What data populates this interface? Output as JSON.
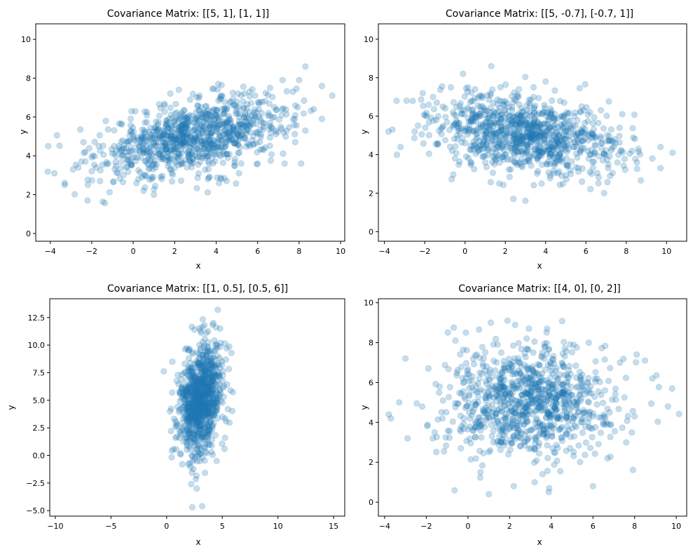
{
  "figure": {
    "marker_color": "#1f77b4",
    "marker_alpha": 0.25,
    "background": "#ffffff"
  },
  "chart_data": [
    {
      "type": "scatter",
      "title": "Covariance Matrix: [[5, 1], [1, 1]]",
      "xlabel": "x",
      "ylabel": "y",
      "xlim": [
        -4.7,
        10.2
      ],
      "ylim": [
        -0.4,
        10.8
      ],
      "xticks": [
        -4,
        -2,
        0,
        2,
        4,
        6,
        8,
        10
      ],
      "yticks": [
        0,
        2,
        4,
        6,
        8,
        10
      ],
      "mean": [
        3,
        5
      ],
      "covariance": [
        [
          5,
          1
        ],
        [
          1,
          1
        ]
      ],
      "n_points": 1000,
      "grid": false,
      "points": [
        [
          -4.1,
          4.5
        ],
        [
          -3.8,
          3.1
        ],
        [
          -3.3,
          2.6
        ],
        [
          -3.3,
          2.5
        ],
        [
          -2.9,
          3.3
        ],
        [
          -2.5,
          3.7
        ],
        [
          -2.4,
          4.7
        ],
        [
          -2.2,
          1.7
        ],
        [
          -2.0,
          3.2
        ],
        [
          -1.6,
          2.7
        ],
        [
          -1.2,
          3.6
        ],
        [
          -0.9,
          4.1
        ],
        [
          -0.5,
          4.8
        ],
        [
          0.1,
          6.3
        ],
        [
          0.5,
          2.2
        ],
        [
          0.6,
          3.0
        ],
        [
          1.0,
          2.0
        ],
        [
          1.5,
          6.6
        ],
        [
          2.2,
          7.4
        ],
        [
          2.6,
          3.4
        ],
        [
          3.2,
          7.1
        ],
        [
          3.6,
          2.8
        ],
        [
          4.1,
          7.7
        ],
        [
          4.5,
          2.7
        ],
        [
          5.1,
          3.1
        ],
        [
          5.6,
          7.3
        ],
        [
          6.0,
          3.6
        ],
        [
          6.6,
          7.5
        ],
        [
          7.2,
          7.9
        ],
        [
          7.3,
          3.6
        ],
        [
          7.7,
          7.3
        ],
        [
          8.0,
          7.9
        ],
        [
          8.1,
          3.6
        ],
        [
          8.3,
          5.3
        ],
        [
          8.3,
          8.6
        ],
        [
          9.1,
          7.6
        ],
        [
          9.1,
          5.9
        ],
        [
          9.6,
          7.1
        ],
        [
          1.8,
          5.4
        ],
        [
          2.9,
          4.8
        ],
        [
          3.5,
          5.2
        ],
        [
          4.2,
          5.6
        ],
        [
          2.3,
          4.5
        ],
        [
          3.1,
          5.9
        ],
        [
          4.8,
          5.5
        ],
        [
          1.2,
          4.3
        ],
        [
          5.4,
          6.1
        ],
        [
          0.4,
          4.9
        ],
        [
          2.7,
          3.9
        ],
        [
          3.9,
          4.4
        ],
        [
          6.2,
          6.2
        ],
        [
          5.8,
          5.0
        ],
        [
          -0.3,
          3.8
        ],
        [
          1.6,
          5.8
        ],
        [
          4.4,
          6.4
        ],
        [
          6.8,
          6.5
        ]
      ]
    },
    {
      "type": "scatter",
      "title": "Covariance Matrix: [[5, -0.7], [-0.7, 1]]",
      "xlabel": "x",
      "ylabel": "y",
      "xlim": [
        -4.3,
        11.0
      ],
      "ylim": [
        -0.5,
        10.8
      ],
      "xticks": [
        -4,
        -2,
        0,
        2,
        4,
        6,
        8,
        10
      ],
      "yticks": [
        0,
        2,
        4,
        6,
        8,
        10
      ],
      "mean": [
        3,
        5
      ],
      "covariance": [
        [
          5,
          -0.7
        ],
        [
          -0.7,
          1
        ]
      ],
      "n_points": 1000,
      "grid": false,
      "points": [
        [
          -3.8,
          5.2
        ],
        [
          -3.6,
          5.3
        ],
        [
          -3.4,
          6.8
        ],
        [
          -3.2,
          4.4
        ],
        [
          -2.9,
          6.8
        ],
        [
          -2.5,
          5.2
        ],
        [
          -2.1,
          7.2
        ],
        [
          -1.9,
          6.0
        ],
        [
          -1.4,
          6.7
        ],
        [
          -0.7,
          7.5
        ],
        [
          -0.5,
          3.8
        ],
        [
          -0.1,
          8.2
        ],
        [
          0.5,
          7.4
        ],
        [
          1.0,
          3.6
        ],
        [
          1.3,
          8.6
        ],
        [
          1.7,
          2.5
        ],
        [
          2.4,
          1.7
        ],
        [
          3.0,
          1.6
        ],
        [
          3.4,
          7.5
        ],
        [
          3.8,
          2.5
        ],
        [
          4.0,
          7.8
        ],
        [
          4.8,
          2.9
        ],
        [
          5.8,
          2.6
        ],
        [
          6.2,
          6.2
        ],
        [
          6.9,
          2.0
        ],
        [
          7.2,
          2.9
        ],
        [
          7.8,
          6.1
        ],
        [
          8.6,
          4.3
        ],
        [
          9.3,
          3.8
        ],
        [
          9.7,
          4.4
        ],
        [
          9.7,
          3.3
        ],
        [
          10.3,
          4.1
        ],
        [
          1.8,
          5.3
        ],
        [
          2.9,
          4.8
        ],
        [
          3.5,
          5.1
        ],
        [
          4.2,
          4.6
        ],
        [
          2.3,
          5.6
        ],
        [
          3.1,
          4.2
        ],
        [
          4.8,
          4.9
        ],
        [
          1.2,
          5.9
        ],
        [
          5.4,
          4.4
        ],
        [
          0.4,
          6.1
        ],
        [
          2.7,
          5.9
        ],
        [
          3.9,
          5.6
        ],
        [
          6.2,
          4.0
        ],
        [
          5.8,
          5.2
        ],
        [
          -0.3,
          5.4
        ],
        [
          1.6,
          4.4
        ],
        [
          4.4,
          3.8
        ],
        [
          6.8,
          4.6
        ]
      ]
    },
    {
      "type": "scatter",
      "title": "Covariance Matrix: [[1, 0.5], [0.5, 6]]",
      "xlabel": "x",
      "ylabel": "y",
      "xlim": [
        -10.5,
        16.0
      ],
      "ylim": [
        -5.5,
        14.2
      ],
      "xticks": [
        -10,
        -5,
        0,
        5,
        10,
        15
      ],
      "yticks": [
        -5.0,
        -2.5,
        0.0,
        2.5,
        5.0,
        7.5,
        10.0,
        12.5
      ],
      "ytick_labels": [
        "−5.0",
        "−2.5",
        "0.0",
        "2.5",
        "5.0",
        "7.5",
        "10.0",
        "12.5"
      ],
      "xtick_labels": [
        "−10",
        "−5",
        "0",
        "5",
        "10",
        "15"
      ],
      "mean": [
        3,
        5
      ],
      "covariance": [
        [
          1,
          0.5
        ],
        [
          0.5,
          6
        ]
      ],
      "n_points": 1000,
      "grid": false,
      "points": [
        [
          2.3,
          -4.7
        ],
        [
          3.2,
          -4.6
        ],
        [
          2.2,
          -2.6
        ],
        [
          2.7,
          -3.0
        ],
        [
          1.4,
          -0.8
        ],
        [
          0.3,
          4.0
        ],
        [
          0.5,
          5.7
        ],
        [
          0.8,
          1.6
        ],
        [
          1.0,
          7.3
        ],
        [
          1.8,
          9.7
        ],
        [
          2.5,
          11.4
        ],
        [
          3.1,
          11.1
        ],
        [
          3.4,
          11.8
        ],
        [
          4.2,
          12.0
        ],
        [
          4.6,
          13.2
        ],
        [
          4.8,
          11.5
        ],
        [
          5.4,
          9.7
        ],
        [
          5.5,
          4.2
        ],
        [
          5.2,
          0.6
        ],
        [
          4.5,
          -0.5
        ],
        [
          3.6,
          0.2
        ],
        [
          2.9,
          5.1
        ],
        [
          3.0,
          6.2
        ],
        [
          3.3,
          4.4
        ],
        [
          2.6,
          3.6
        ],
        [
          3.5,
          7.3
        ],
        [
          2.8,
          8.4
        ],
        [
          3.7,
          2.6
        ],
        [
          2.4,
          2.0
        ],
        [
          4.1,
          6.8
        ],
        [
          1.9,
          4.6
        ],
        [
          4.3,
          5.2
        ],
        [
          3.1,
          9.1
        ],
        [
          2.0,
          6.4
        ],
        [
          3.9,
          3.1
        ],
        [
          2.2,
          8.0
        ]
      ]
    },
    {
      "type": "scatter",
      "title": "Covariance Matrix: [[4, 0], [0, 2]]",
      "xlabel": "x",
      "ylabel": "y",
      "xlim": [
        -4.3,
        10.5
      ],
      "ylim": [
        -0.7,
        10.2
      ],
      "xticks": [
        -4,
        -2,
        0,
        2,
        4,
        6,
        8,
        10
      ],
      "yticks": [
        0,
        2,
        4,
        6,
        8,
        10
      ],
      "mean": [
        3,
        5
      ],
      "covariance": [
        [
          4,
          0
        ],
        [
          0,
          2
        ]
      ],
      "n_points": 1000,
      "grid": false,
      "points": [
        [
          -3.8,
          4.4
        ],
        [
          -3.7,
          4.2
        ],
        [
          -3.3,
          5.0
        ],
        [
          -3.0,
          7.2
        ],
        [
          -2.9,
          3.2
        ],
        [
          -1.9,
          6.7
        ],
        [
          -1.6,
          3.5
        ],
        [
          -0.6,
          8.1
        ],
        [
          -0.1,
          8.5
        ],
        [
          0.6,
          1.5
        ],
        [
          1.0,
          0.4
        ],
        [
          1.1,
          9.0
        ],
        [
          1.6,
          7.5
        ],
        [
          1.9,
          9.1
        ],
        [
          2.2,
          0.8
        ],
        [
          3.2,
          1.0
        ],
        [
          3.8,
          8.7
        ],
        [
          3.9,
          0.7
        ],
        [
          4.9,
          7.9
        ],
        [
          5.8,
          8.0
        ],
        [
          6.0,
          0.8
        ],
        [
          6.7,
          2.2
        ],
        [
          7.3,
          7.0
        ],
        [
          7.6,
          3.0
        ],
        [
          8.0,
          4.3
        ],
        [
          8.1,
          7.4
        ],
        [
          8.5,
          7.1
        ],
        [
          9.6,
          4.8
        ],
        [
          9.8,
          5.7
        ],
        [
          1.8,
          5.4
        ],
        [
          2.9,
          4.8
        ],
        [
          3.5,
          5.2
        ],
        [
          4.2,
          5.6
        ],
        [
          2.3,
          4.5
        ],
        [
          3.1,
          5.9
        ],
        [
          4.8,
          5.5
        ],
        [
          1.2,
          4.3
        ],
        [
          5.4,
          6.1
        ],
        [
          0.4,
          4.9
        ],
        [
          2.7,
          3.9
        ],
        [
          3.9,
          4.4
        ],
        [
          6.2,
          6.2
        ],
        [
          5.8,
          5.0
        ],
        [
          -0.3,
          3.8
        ],
        [
          1.6,
          5.8
        ],
        [
          4.4,
          6.4
        ],
        [
          6.8,
          4.5
        ],
        [
          0.9,
          6.8
        ],
        [
          5.1,
          3.3
        ],
        [
          2.5,
          2.8
        ]
      ]
    }
  ]
}
